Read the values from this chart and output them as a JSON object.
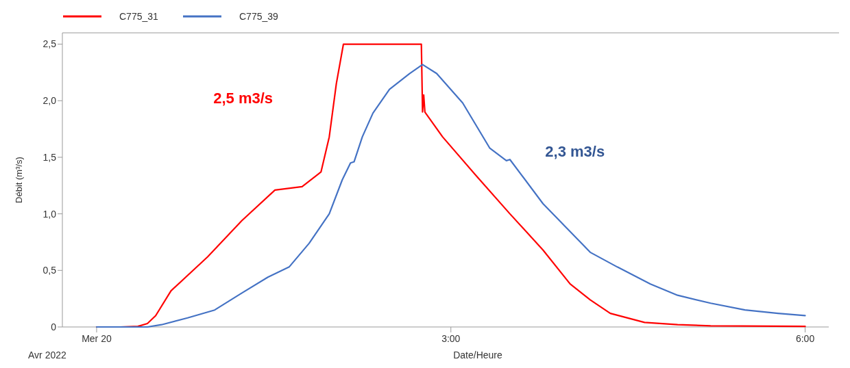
{
  "chart_data": {
    "type": "line",
    "xlabel": "Date/Heure",
    "ylabel": "Débit (m³/s)",
    "xlim": [
      -0.29,
      6.2
    ],
    "ylim": [
      0,
      2.6
    ],
    "xticks": [
      {
        "value": 0,
        "label": "Mer 20"
      },
      {
        "value": 3,
        "label": "3:00"
      },
      {
        "value": 6,
        "label": "6:00"
      }
    ],
    "yticks": [
      {
        "value": 0,
        "label": "0"
      },
      {
        "value": 0.5,
        "label": "0,5"
      },
      {
        "value": 1,
        "label": "1,0"
      },
      {
        "value": 1.5,
        "label": "1,5"
      },
      {
        "value": 2,
        "label": "2,0"
      },
      {
        "value": 2.5,
        "label": "2,5"
      }
    ],
    "legend": "top left",
    "line_style": "solid",
    "marker": "none",
    "annotations": [
      "2,5 m3/s",
      "2,3 m3/s",
      "Avr 2022"
    ],
    "series": [
      {
        "name": "C775_31",
        "color": "#ff0000",
        "x": [
          0,
          0.2,
          0.35,
          0.43,
          0.5,
          0.63,
          0.94,
          1.23,
          1.51,
          1.74,
          1.9,
          1.97,
          2.03,
          2.09,
          2.75,
          2.76,
          2.77,
          2.78,
          2.93,
          3.22,
          3.5,
          3.78,
          4.01,
          4.18,
          4.35,
          4.64,
          4.92,
          5.2,
          6.0
        ],
        "values": [
          0,
          0,
          0.005,
          0.03,
          0.1,
          0.32,
          0.62,
          0.94,
          1.21,
          1.24,
          1.37,
          1.68,
          2.15,
          2.5,
          2.5,
          1.9,
          2.05,
          1.9,
          1.68,
          1.33,
          1.0,
          0.68,
          0.38,
          0.24,
          0.12,
          0.04,
          0.02,
          0.01,
          0.005
        ]
      },
      {
        "name": "C775_39",
        "color": "#4472c4",
        "x": [
          0,
          0.43,
          0.55,
          0.77,
          1.0,
          1.23,
          1.45,
          1.63,
          1.8,
          1.97,
          2.08,
          2.15,
          2.18,
          2.25,
          2.34,
          2.48,
          2.65,
          2.76,
          2.88,
          3.1,
          3.33,
          3.47,
          3.5,
          3.78,
          4.18,
          4.41,
          4.69,
          4.92,
          5.2,
          5.49,
          5.77,
          6.0
        ],
        "values": [
          0,
          0,
          0.02,
          0.08,
          0.15,
          0.3,
          0.44,
          0.53,
          0.74,
          1.0,
          1.3,
          1.45,
          1.46,
          1.68,
          1.89,
          2.1,
          2.24,
          2.32,
          2.24,
          1.98,
          1.58,
          1.47,
          1.48,
          1.09,
          0.66,
          0.53,
          0.38,
          0.28,
          0.21,
          0.15,
          0.12,
          0.1
        ]
      }
    ]
  }
}
